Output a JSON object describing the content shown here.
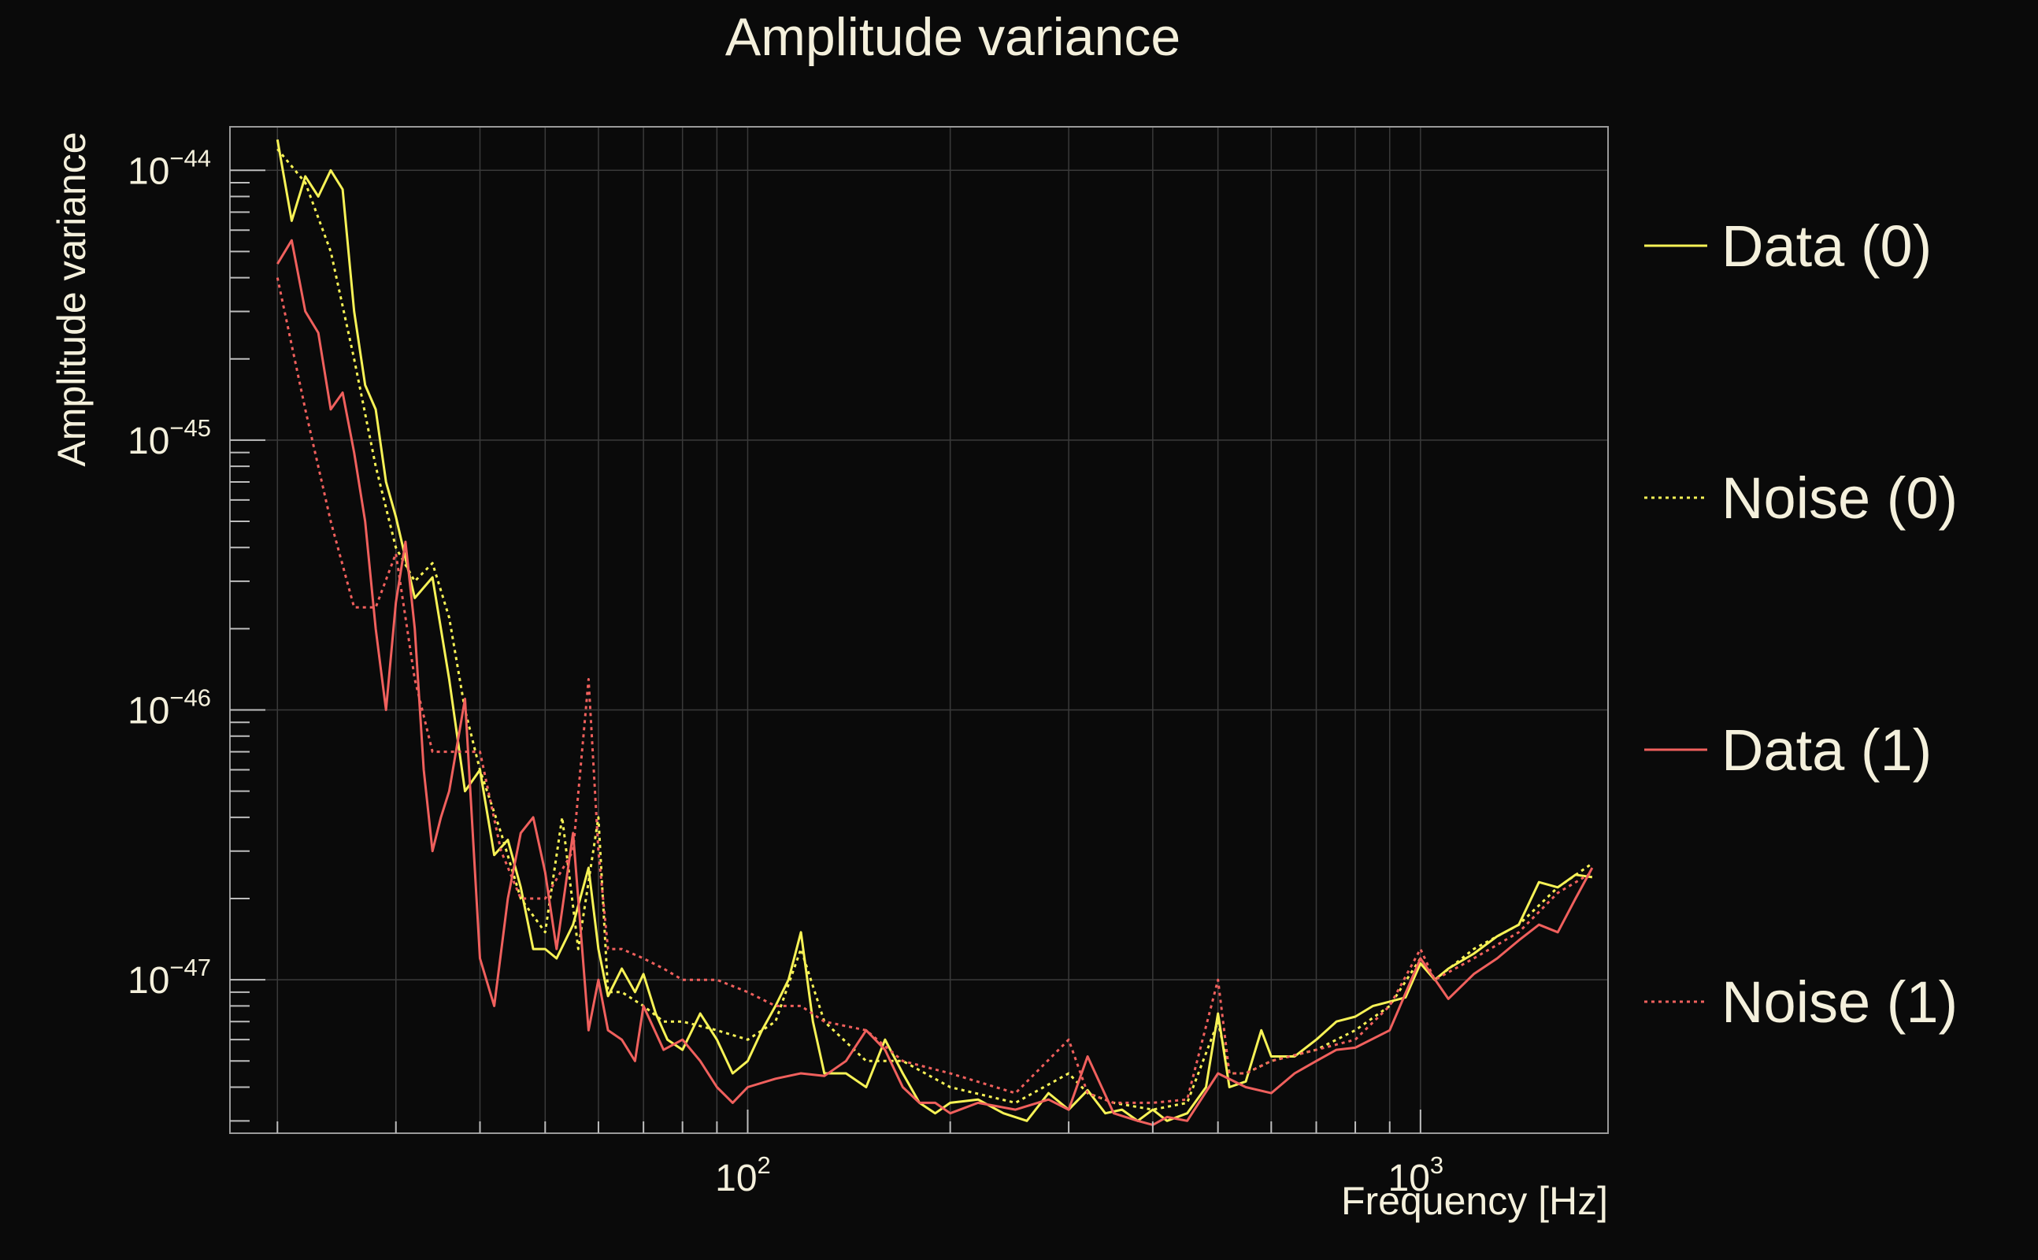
{
  "colors": {
    "background": "#0a0a0a",
    "text": "#f4f0dc",
    "data0": "#f7f256",
    "noise0": "#f7f256",
    "data1": "#f0605d",
    "noise1": "#f0605d"
  },
  "chart_data": {
    "type": "line",
    "title": "Amplitude variance",
    "xlabel": "Frequency [Hz]",
    "ylabel": "Amplitude variance",
    "xscale": "log",
    "yscale": "log",
    "xlim": [
      17,
      1900
    ],
    "ylim": [
      2.7e-48,
      1.45e-44
    ],
    "grid": true,
    "legend_position": "right",
    "x_ticks": [
      {
        "value": 100,
        "base": "10",
        "exp": "2"
      },
      {
        "value": 1000,
        "base": "10",
        "exp": "3"
      }
    ],
    "y_ticks": [
      {
        "value": 1e-44,
        "base": "10",
        "exp": "−44"
      },
      {
        "value": 1e-45,
        "base": "10",
        "exp": "−45"
      },
      {
        "value": 1e-46,
        "base": "10",
        "exp": "−46"
      },
      {
        "value": 1e-47,
        "base": "10",
        "exp": "−47"
      }
    ],
    "series": [
      {
        "name": "Data (0)",
        "style": "solid",
        "color": "#f7f256",
        "x": [
          20,
          21,
          22,
          23,
          24,
          25,
          26,
          27,
          28,
          29,
          30,
          32,
          34,
          36,
          38,
          40,
          42,
          44,
          46,
          48,
          50,
          52,
          55,
          58,
          60,
          62,
          65,
          68,
          70,
          73,
          76,
          80,
          85,
          90,
          95,
          100,
          105,
          110,
          115,
          120,
          125,
          130,
          140,
          150,
          160,
          170,
          180,
          190,
          200,
          220,
          240,
          260,
          280,
          300,
          320,
          340,
          360,
          380,
          400,
          420,
          450,
          480,
          500,
          520,
          550,
          580,
          600,
          650,
          700,
          750,
          800,
          850,
          900,
          950,
          1000,
          1050,
          1100,
          1200,
          1300,
          1400,
          1500,
          1600,
          1700,
          1800
        ],
        "y": [
          1.3e-44,
          6.5e-45,
          9.5e-45,
          8e-45,
          1e-44,
          8.5e-45,
          3e-45,
          1.6e-45,
          1.3e-45,
          7e-46,
          5.2e-46,
          2.6e-46,
          3.1e-46,
          1.3e-46,
          5e-47,
          6e-47,
          2.9e-47,
          3.3e-47,
          2.2e-47,
          1.3e-47,
          1.3e-47,
          1.2e-47,
          1.6e-47,
          2.6e-47,
          1.3e-47,
          8.7e-48,
          1.1e-47,
          9e-48,
          1.05e-47,
          7.5e-48,
          6e-48,
          5.5e-48,
          7.5e-48,
          6e-48,
          4.5e-48,
          5e-48,
          6.5e-48,
          8e-48,
          1e-47,
          1.5e-47,
          7e-48,
          4.5e-48,
          4.5e-48,
          4e-48,
          6e-48,
          4.5e-48,
          3.5e-48,
          3.2e-48,
          3.5e-48,
          3.6e-48,
          3.2e-48,
          3e-48,
          3.8e-48,
          3.3e-48,
          3.9e-48,
          3.2e-48,
          3.3e-48,
          3e-48,
          3.3e-48,
          3e-48,
          3.2e-48,
          4e-48,
          7.5e-48,
          4e-48,
          4.2e-48,
          6.5e-48,
          5.2e-48,
          5.2e-48,
          6e-48,
          7e-48,
          7.3e-48,
          8e-48,
          8.3e-48,
          8.6e-48,
          1.15e-47,
          1e-47,
          1.1e-47,
          1.25e-47,
          1.45e-47,
          1.6e-47,
          2.3e-47,
          2.2e-47,
          2.45e-47,
          2.4e-47
        ]
      },
      {
        "name": "Noise (0)",
        "style": "dotted",
        "color": "#f7f256",
        "x": [
          20,
          22,
          24,
          26,
          28,
          30,
          32,
          34,
          36,
          38,
          40,
          43,
          46,
          50,
          53,
          56,
          60,
          62,
          65,
          70,
          75,
          80,
          90,
          100,
          110,
          120,
          130,
          150,
          170,
          200,
          250,
          300,
          320,
          350,
          400,
          450,
          500,
          520,
          550,
          600,
          700,
          800,
          900,
          1000,
          1050,
          1200,
          1400,
          1600,
          1800
        ],
        "y": [
          1.2e-44,
          9e-45,
          5e-45,
          2e-45,
          8e-46,
          4e-46,
          3e-46,
          3.5e-46,
          2.2e-46,
          1e-46,
          6e-47,
          3.5e-47,
          2e-47,
          1.5e-47,
          4e-47,
          1.3e-47,
          4e-47,
          9e-48,
          9e-48,
          8e-48,
          7e-48,
          7e-48,
          6.5e-48,
          6e-48,
          7e-48,
          1.3e-47,
          7e-48,
          5e-48,
          5e-48,
          4e-48,
          3.5e-48,
          4.5e-48,
          3.8e-48,
          3.5e-48,
          3.3e-48,
          3.5e-48,
          7e-48,
          4.5e-48,
          4.5e-48,
          5e-48,
          5.5e-48,
          6.5e-48,
          8e-48,
          1.2e-47,
          1e-47,
          1.3e-47,
          1.6e-47,
          2.2e-47,
          2.7e-47
        ]
      },
      {
        "name": "Data (1)",
        "style": "solid",
        "color": "#f0605d",
        "x": [
          20,
          21,
          22,
          23,
          24,
          25,
          26,
          27,
          28,
          29,
          30,
          31,
          32,
          33,
          34,
          35,
          36,
          38,
          40,
          42,
          44,
          46,
          48,
          50,
          52,
          55,
          58,
          60,
          62,
          65,
          68,
          70,
          75,
          80,
          85,
          90,
          95,
          100,
          110,
          120,
          130,
          140,
          150,
          160,
          170,
          180,
          190,
          200,
          220,
          250,
          280,
          300,
          320,
          350,
          380,
          400,
          420,
          450,
          500,
          550,
          600,
          650,
          700,
          750,
          800,
          900,
          1000,
          1100,
          1200,
          1300,
          1400,
          1500,
          1600,
          1700,
          1800
        ],
        "y": [
          4.5e-45,
          5.5e-45,
          3e-45,
          2.5e-45,
          1.3e-45,
          1.5e-45,
          9e-46,
          5e-46,
          2e-46,
          1e-46,
          2.5e-46,
          4.2e-46,
          2e-46,
          6e-47,
          3e-47,
          4e-47,
          5e-47,
          1.1e-46,
          1.2e-47,
          8e-48,
          2e-47,
          3.5e-47,
          4e-47,
          2.5e-47,
          1.3e-47,
          3.5e-47,
          6.5e-48,
          1e-47,
          6.5e-48,
          6e-48,
          5e-48,
          8e-48,
          5.5e-48,
          6e-48,
          5e-48,
          4e-48,
          3.5e-48,
          4e-48,
          4.3e-48,
          4.5e-48,
          4.4e-48,
          5e-48,
          6.5e-48,
          5.5e-48,
          4e-48,
          3.5e-48,
          3.5e-48,
          3.2e-48,
          3.5e-48,
          3.3e-48,
          3.6e-48,
          3.3e-48,
          5.2e-48,
          3.2e-48,
          3e-48,
          2.9e-48,
          3.1e-48,
          3e-48,
          4.5e-48,
          4e-48,
          3.8e-48,
          4.5e-48,
          5e-48,
          5.5e-48,
          5.6e-48,
          6.5e-48,
          1.2e-47,
          8.5e-48,
          1.05e-47,
          1.2e-47,
          1.4e-47,
          1.6e-47,
          1.5e-47,
          2e-47,
          2.6e-47
        ]
      },
      {
        "name": "Noise (1)",
        "style": "dotted",
        "color": "#f0605d",
        "x": [
          20,
          22,
          24,
          26,
          28,
          30,
          32,
          34,
          36,
          40,
          43,
          46,
          50,
          55,
          58,
          60,
          62,
          65,
          70,
          75,
          80,
          90,
          100,
          110,
          120,
          130,
          150,
          170,
          200,
          250,
          300,
          320,
          350,
          400,
          450,
          500,
          520,
          550,
          600,
          700,
          800,
          900,
          1000,
          1050,
          1200,
          1400,
          1600,
          1800
        ],
        "y": [
          4e-45,
          1.3e-45,
          5e-46,
          2.4e-46,
          2.4e-46,
          3.8e-46,
          1.3e-46,
          7e-47,
          7e-47,
          7e-47,
          3e-47,
          2e-47,
          2e-47,
          3e-47,
          1.3e-46,
          3e-47,
          1.3e-47,
          1.3e-47,
          1.2e-47,
          1.1e-47,
          1e-47,
          1e-47,
          9e-48,
          8e-48,
          8e-48,
          7e-48,
          6.5e-48,
          5e-48,
          4.5e-48,
          3.8e-48,
          6e-48,
          3.8e-48,
          3.5e-48,
          3.5e-48,
          3.6e-48,
          1e-47,
          4.5e-48,
          4.5e-48,
          5e-48,
          5.5e-48,
          6e-48,
          8e-48,
          1.3e-47,
          1e-47,
          1.2e-47,
          1.5e-47,
          2.1e-47,
          2.5e-47
        ]
      }
    ]
  }
}
